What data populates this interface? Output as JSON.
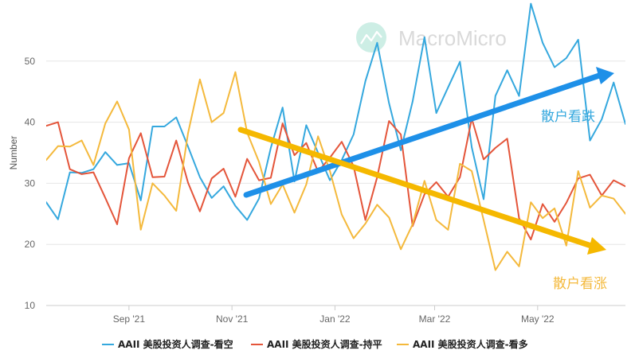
{
  "chart_data": {
    "type": "line",
    "title": "",
    "xlabel": "",
    "ylabel": "Number",
    "ylim": [
      10,
      60
    ],
    "yticks": [
      10,
      20,
      30,
      40,
      50
    ],
    "grid": true,
    "legend_position": "bottom",
    "x_ticks": [
      "Sep '21",
      "Nov '21",
      "Jan '22",
      "Mar '22",
      "May '22"
    ],
    "x_start": "2021-07-14",
    "x_end": "2022-06-22",
    "watermark": "MacroMicro",
    "series": [
      {
        "name": "AAII 美股投资人调查-看空",
        "color": "#35a8de",
        "dates": [
          "2021-07-14",
          "2021-07-21",
          "2021-07-28",
          "2021-08-04",
          "2021-08-11",
          "2021-08-18",
          "2021-08-25",
          "2021-09-01",
          "2021-09-08",
          "2021-09-15",
          "2021-09-22",
          "2021-09-29",
          "2021-10-06",
          "2021-10-13",
          "2021-10-20",
          "2021-10-27",
          "2021-11-03",
          "2021-11-10",
          "2021-11-17",
          "2021-11-24",
          "2021-12-01",
          "2021-12-08",
          "2021-12-15",
          "2021-12-22",
          "2021-12-29",
          "2022-01-05",
          "2022-01-12",
          "2022-01-19",
          "2022-01-26",
          "2022-02-02",
          "2022-02-09",
          "2022-02-16",
          "2022-02-23",
          "2022-03-02",
          "2022-03-09",
          "2022-03-16",
          "2022-03-23",
          "2022-03-30",
          "2022-04-06",
          "2022-04-13",
          "2022-04-20",
          "2022-04-27",
          "2022-05-04",
          "2022-05-11",
          "2022-05-18",
          "2022-05-25",
          "2022-06-01",
          "2022-06-08",
          "2022-06-15",
          "2022-06-22"
        ],
        "values": [
          26.9,
          24.1,
          31.8,
          31.7,
          32.3,
          35.1,
          33.0,
          33.3,
          27.2,
          39.3,
          39.3,
          40.8,
          36.0,
          31.0,
          27.6,
          29.5,
          26.3,
          24.0,
          27.5,
          35.8,
          42.4,
          30.3,
          39.5,
          35.0,
          30.5,
          33.8,
          38.0,
          46.7,
          53.0,
          43.1,
          35.4,
          43.4,
          53.9,
          41.5,
          45.7,
          49.9,
          35.9,
          27.4,
          44.3,
          48.5,
          44.3,
          59.4,
          53.0,
          49.0,
          50.5,
          53.5,
          37.0,
          40.5,
          46.5,
          39.7
        ]
      },
      {
        "name": "AAII 美股投资人调查-持平",
        "color": "#e4553a",
        "dates": [
          "2021-07-14",
          "2021-07-21",
          "2021-07-28",
          "2021-08-04",
          "2021-08-11",
          "2021-08-18",
          "2021-08-25",
          "2021-09-01",
          "2021-09-08",
          "2021-09-15",
          "2021-09-22",
          "2021-09-29",
          "2021-10-06",
          "2021-10-13",
          "2021-10-20",
          "2021-10-27",
          "2021-11-03",
          "2021-11-10",
          "2021-11-17",
          "2021-11-24",
          "2021-12-01",
          "2021-12-08",
          "2021-12-15",
          "2021-12-22",
          "2021-12-29",
          "2022-01-05",
          "2022-01-12",
          "2022-01-19",
          "2022-01-26",
          "2022-02-02",
          "2022-02-09",
          "2022-02-16",
          "2022-02-23",
          "2022-03-02",
          "2022-03-09",
          "2022-03-16",
          "2022-03-23",
          "2022-03-30",
          "2022-04-06",
          "2022-04-13",
          "2022-04-20",
          "2022-04-27",
          "2022-05-04",
          "2022-05-11",
          "2022-05-18",
          "2022-05-25",
          "2022-06-01",
          "2022-06-08",
          "2022-06-15",
          "2022-06-22"
        ],
        "values": [
          39.4,
          40.0,
          32.3,
          31.5,
          31.8,
          27.6,
          23.3,
          34.1,
          38.2,
          31.0,
          31.1,
          37.0,
          30.1,
          25.4,
          30.8,
          32.4,
          27.8,
          34.0,
          30.5,
          30.9,
          39.8,
          34.6,
          36.6,
          31.9,
          34.2,
          36.8,
          32.8,
          24.0,
          31.0,
          40.2,
          38.0,
          23.0,
          28.2,
          30.2,
          27.8,
          31.0,
          40.6,
          33.9,
          35.8,
          37.3,
          24.3,
          20.8,
          26.6,
          23.7,
          26.8,
          30.8,
          31.4,
          28.0,
          30.5,
          29.5
        ]
      },
      {
        "name": "AAII 美股投资人调查-看多",
        "color": "#f4b93c",
        "dates": [
          "2021-07-14",
          "2021-07-21",
          "2021-07-28",
          "2021-08-04",
          "2021-08-11",
          "2021-08-18",
          "2021-08-25",
          "2021-09-01",
          "2021-09-08",
          "2021-09-15",
          "2021-09-22",
          "2021-09-29",
          "2021-10-06",
          "2021-10-13",
          "2021-10-20",
          "2021-10-27",
          "2021-11-03",
          "2021-11-10",
          "2021-11-17",
          "2021-11-24",
          "2021-12-01",
          "2021-12-08",
          "2021-12-15",
          "2021-12-22",
          "2021-12-29",
          "2022-01-05",
          "2022-01-12",
          "2022-01-19",
          "2022-01-26",
          "2022-02-02",
          "2022-02-09",
          "2022-02-16",
          "2022-02-23",
          "2022-03-02",
          "2022-03-09",
          "2022-03-16",
          "2022-03-23",
          "2022-03-30",
          "2022-04-06",
          "2022-04-13",
          "2022-04-20",
          "2022-04-27",
          "2022-05-04",
          "2022-05-11",
          "2022-05-18",
          "2022-05-25",
          "2022-06-01",
          "2022-06-08",
          "2022-06-15",
          "2022-06-22"
        ],
        "values": [
          33.8,
          36.1,
          36.0,
          37.0,
          33.0,
          39.8,
          43.4,
          38.8,
          22.4,
          30.0,
          28.0,
          25.5,
          38.2,
          47.0,
          40.0,
          41.5,
          48.2,
          38.3,
          33.5,
          26.6,
          29.8,
          25.2,
          29.8,
          37.7,
          32.0,
          24.9,
          21.0,
          23.4,
          26.5,
          24.4,
          19.2,
          23.3,
          30.4,
          24.0,
          22.4,
          33.2,
          32.0,
          24.0,
          15.8,
          18.8,
          16.4,
          26.9,
          24.3,
          25.9,
          19.8,
          32.0,
          26.0,
          28.0,
          27.5,
          25.0
        ]
      }
    ],
    "annotations": [
      {
        "text": "散户看跌",
        "color": "#35a8de"
      },
      {
        "text": "散户看涨",
        "color": "#f4b93c"
      }
    ]
  }
}
